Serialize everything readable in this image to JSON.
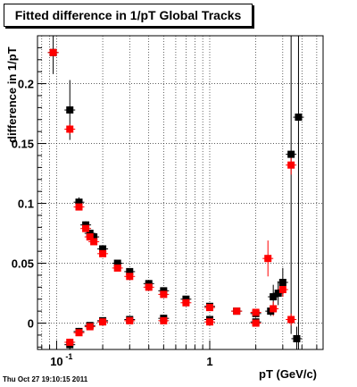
{
  "chart_data": {
    "type": "scatter",
    "title": "Fitted difference in 1/pT  Global Tracks",
    "xlabel": "pT (GeV/c)",
    "ylabel": "difference in 1/pT",
    "x_scale": "log",
    "xlim": [
      0.075,
      5.5
    ],
    "ylim": [
      -0.022,
      0.24
    ],
    "grid": true,
    "y_ticks": [
      0,
      0.05,
      0.1,
      0.15,
      0.2
    ],
    "y_tick_labels": [
      "0",
      "0.05",
      "0.1",
      "0.15",
      "0.2"
    ],
    "x_tick_labels": [
      {
        "value": 0.1,
        "base": "10",
        "exp": "-1"
      },
      {
        "value": 1,
        "base": "1",
        "exp": ""
      }
    ],
    "colors": {
      "black_series": "#000000",
      "red_series": "#ff0000"
    },
    "series": [
      {
        "color": "#000000",
        "marker": "square",
        "points": [
          {
            "x": 0.095,
            "y": 0.226,
            "err": 0.018
          },
          {
            "x": 0.122,
            "y": 0.178,
            "err": 0.025
          },
          {
            "x": 0.122,
            "y": -0.018,
            "err": 0.004
          },
          {
            "x": 0.14,
            "y": 0.101,
            "err": 0.004
          },
          {
            "x": 0.14,
            "y": -0.007,
            "err": 0.003
          },
          {
            "x": 0.155,
            "y": 0.082,
            "err": 0.003
          },
          {
            "x": 0.165,
            "y": 0.075,
            "err": 0.003
          },
          {
            "x": 0.165,
            "y": -0.002,
            "err": 0.002
          },
          {
            "x": 0.175,
            "y": 0.072,
            "err": 0.003
          },
          {
            "x": 0.2,
            "y": 0.062,
            "err": 0.003
          },
          {
            "x": 0.2,
            "y": 0.002,
            "err": 0.002
          },
          {
            "x": 0.25,
            "y": 0.05,
            "err": 0.002
          },
          {
            "x": 0.3,
            "y": 0.043,
            "err": 0.002
          },
          {
            "x": 0.3,
            "y": 0.003,
            "err": 0.001
          },
          {
            "x": 0.4,
            "y": 0.033,
            "err": 0.002
          },
          {
            "x": 0.5,
            "y": 0.027,
            "err": 0.002
          },
          {
            "x": 0.5,
            "y": 0.004,
            "err": 0.001
          },
          {
            "x": 0.7,
            "y": 0.02,
            "err": 0.002
          },
          {
            "x": 1.0,
            "y": 0.014,
            "err": 0.002
          },
          {
            "x": 1.0,
            "y": 0.003,
            "err": 0.002
          },
          {
            "x": 1.5,
            "y": 0.01,
            "err": 0.002
          },
          {
            "x": 2.0,
            "y": 0.008,
            "err": 0.003
          },
          {
            "x": 2.0,
            "y": 0.001,
            "err": 0.003
          },
          {
            "x": 2.5,
            "y": 0.01,
            "err": 0.004
          },
          {
            "x": 2.6,
            "y": 0.022,
            "err": 0.01
          },
          {
            "x": 2.8,
            "y": 0.025,
            "err": 0.01
          },
          {
            "x": 3.0,
            "y": 0.034,
            "err": 0.012
          },
          {
            "x": 3.4,
            "y": 0.141,
            "err": 0.15
          },
          {
            "x": 3.7,
            "y": -0.013,
            "err": 0.01
          },
          {
            "x": 3.8,
            "y": 0.172,
            "err": 0.2
          }
        ]
      },
      {
        "color": "#ff0000",
        "marker": "square",
        "points": [
          {
            "x": 0.095,
            "y": 0.226,
            "err": 0.002
          },
          {
            "x": 0.122,
            "y": 0.162,
            "err": 0.004
          },
          {
            "x": 0.122,
            "y": -0.016,
            "err": 0.003
          },
          {
            "x": 0.14,
            "y": 0.097,
            "err": 0.002
          },
          {
            "x": 0.14,
            "y": -0.008,
            "err": 0.002
          },
          {
            "x": 0.155,
            "y": 0.079,
            "err": 0.002
          },
          {
            "x": 0.165,
            "y": 0.072,
            "err": 0.002
          },
          {
            "x": 0.165,
            "y": -0.003,
            "err": 0.001
          },
          {
            "x": 0.175,
            "y": 0.068,
            "err": 0.002
          },
          {
            "x": 0.2,
            "y": 0.058,
            "err": 0.002
          },
          {
            "x": 0.2,
            "y": 0.001,
            "err": 0.001
          },
          {
            "x": 0.25,
            "y": 0.046,
            "err": 0.001
          },
          {
            "x": 0.3,
            "y": 0.039,
            "err": 0.001
          },
          {
            "x": 0.3,
            "y": 0.002,
            "err": 0.001
          },
          {
            "x": 0.4,
            "y": 0.03,
            "err": 0.001
          },
          {
            "x": 0.5,
            "y": 0.024,
            "err": 0.001
          },
          {
            "x": 0.5,
            "y": 0.002,
            "err": 0.001
          },
          {
            "x": 0.7,
            "y": 0.017,
            "err": 0.001
          },
          {
            "x": 1.0,
            "y": 0.013,
            "err": 0.001
          },
          {
            "x": 1.0,
            "y": 0.001,
            "err": 0.001
          },
          {
            "x": 1.5,
            "y": 0.01,
            "err": 0.001
          },
          {
            "x": 2.0,
            "y": 0.009,
            "err": 0.002
          },
          {
            "x": 2.0,
            "y": 0.0,
            "err": 0.002
          },
          {
            "x": 2.4,
            "y": 0.054,
            "err": 0.015
          },
          {
            "x": 2.6,
            "y": 0.012,
            "err": 0.006
          },
          {
            "x": 3.0,
            "y": 0.028,
            "err": 0.006
          },
          {
            "x": 3.4,
            "y": 0.132,
            "err": 0.008
          },
          {
            "x": 3.4,
            "y": 0.003,
            "err": 0.005
          }
        ]
      }
    ]
  },
  "footer": {
    "timestamp": "Thu Oct 27 19:10:15 2011"
  }
}
